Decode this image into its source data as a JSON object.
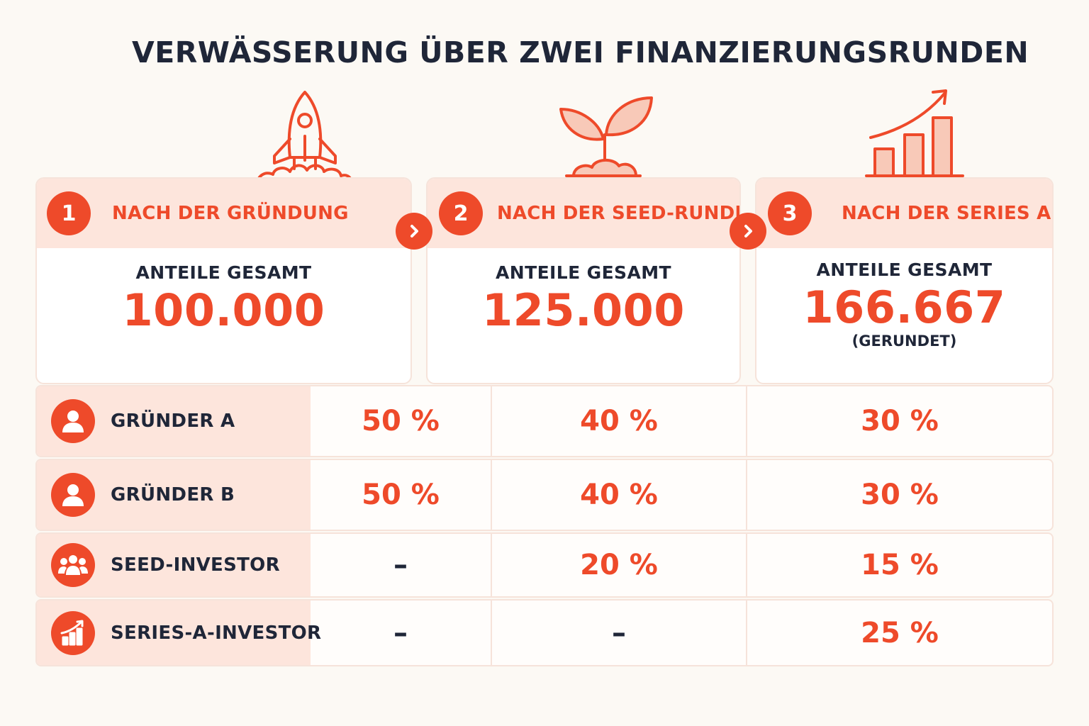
{
  "title": "VERWÄSSERUNG ÜBER ZWEI FINANZIERUNGSRUNDEN",
  "colors": {
    "accent": "#ee4a2a",
    "accent_light": "#fde5dc",
    "text": "#1f2638",
    "background": "#fcf9f4"
  },
  "stages": [
    {
      "number": "1",
      "title": "NACH DER GRÜNDUNG",
      "label": "ANTEILE GESAMT",
      "value": "100.000",
      "note": "",
      "icon": "rocket-icon"
    },
    {
      "number": "2",
      "title": "NACH DER SEED-RUNDE",
      "label": "ANTEILE GESAMT",
      "value": "125.000",
      "note": "",
      "icon": "sprout-icon"
    },
    {
      "number": "3",
      "title": "NACH DER SERIES A",
      "label": "ANTEILE GESAMT",
      "value": "166.667",
      "note": "(GERUNDET)",
      "icon": "growth-chart-icon"
    }
  ],
  "rows": [
    {
      "name": "GRÜNDER A",
      "icon": "person-icon",
      "values": [
        "50 %",
        "40 %",
        "30 %"
      ]
    },
    {
      "name": "GRÜNDER B",
      "icon": "person-icon",
      "values": [
        "50 %",
        "40 %",
        "30 %"
      ]
    },
    {
      "name": "SEED-INVESTOR",
      "icon": "group-icon",
      "values": [
        "–",
        "20 %",
        "15 %"
      ]
    },
    {
      "name": "SERIES-A-INVESTOR",
      "icon": "growth-chart-icon",
      "values": [
        "–",
        "–",
        "25 %"
      ]
    }
  ]
}
